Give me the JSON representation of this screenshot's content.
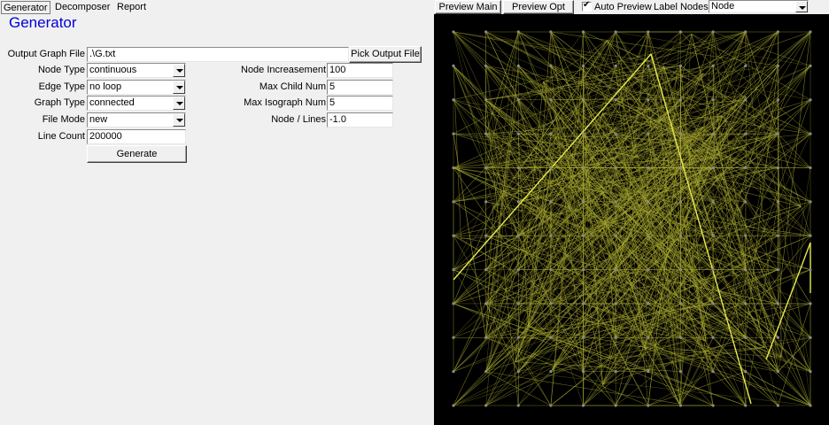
{
  "tabs": {
    "generator": "Generator",
    "decomposer": "Decomposer",
    "report": "Report"
  },
  "title": "Generator",
  "output_file": {
    "label": "Output Graph File",
    "value": ".\\G.txt",
    "button": "Pick Output File"
  },
  "left_fields": {
    "node_type": {
      "label": "Node Type",
      "value": "continuous"
    },
    "edge_type": {
      "label": "Edge Type",
      "value": "no loop"
    },
    "graph_type": {
      "label": "Graph Type",
      "value": "connected"
    },
    "file_mode": {
      "label": "File Mode",
      "value": "new"
    },
    "line_count": {
      "label": "Line Count",
      "value": "200000"
    }
  },
  "right_fields": {
    "node_increasement": {
      "label": "Node Increasement",
      "value": "100"
    },
    "max_child_num": {
      "label": "Max Child Num",
      "value": "5"
    },
    "max_isograph_num": {
      "label": "Max Isograph Num",
      "value": "5"
    },
    "node_lines": {
      "label": "Node / Lines",
      "value": "-1.0"
    }
  },
  "generate_button": "Generate",
  "toolbar": {
    "preview_main": "Preview Main",
    "preview_opt": "Preview Opt",
    "auto_preview": "Auto Preview",
    "auto_preview_checked": true,
    "label_nodes": "Label Nodes",
    "label_nodes_value": "Node"
  },
  "colors": {
    "title": "#0000d8",
    "preview_bg": "#000000",
    "edge": "#a8a830",
    "edge_highlight": "#e8e850",
    "node": "#8a8a8a"
  }
}
